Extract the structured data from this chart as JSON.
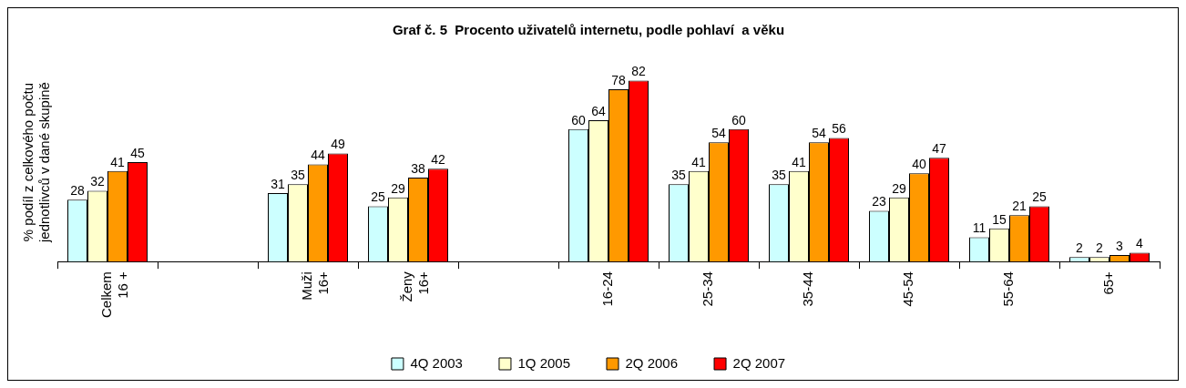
{
  "chart_data": {
    "type": "bar",
    "title": "Graf č. 5  Procento uživatelů internetu, podle pohlaví  a věku",
    "ylabel": "% podíl z celkového počtu jednotlivců v dané skupině",
    "categories": [
      "Celkem 16 +",
      null,
      "Muži 16+",
      "Ženy 16+",
      null,
      "16-24",
      "25-34",
      "35-44",
      "45-54",
      "55-64",
      "65+"
    ],
    "series": [
      {
        "name": "4Q 2003",
        "color": "#ccffff",
        "values": [
          28,
          null,
          31,
          25,
          null,
          60,
          35,
          35,
          23,
          11,
          2
        ]
      },
      {
        "name": "1Q 2005",
        "color": "#ffffcc",
        "values": [
          32,
          null,
          35,
          29,
          null,
          64,
          41,
          41,
          29,
          15,
          2
        ]
      },
      {
        "name": "2Q 2006",
        "color": "#ff9900",
        "values": [
          41,
          null,
          44,
          38,
          null,
          78,
          54,
          54,
          40,
          21,
          3
        ]
      },
      {
        "name": "2Q 2007",
        "color": "#ff0000",
        "values": [
          45,
          null,
          49,
          42,
          null,
          82,
          60,
          56,
          47,
          25,
          4
        ]
      }
    ],
    "tick_labels": "x",
    "grid": false,
    "legend": "bottom",
    "data_labels": true
  }
}
